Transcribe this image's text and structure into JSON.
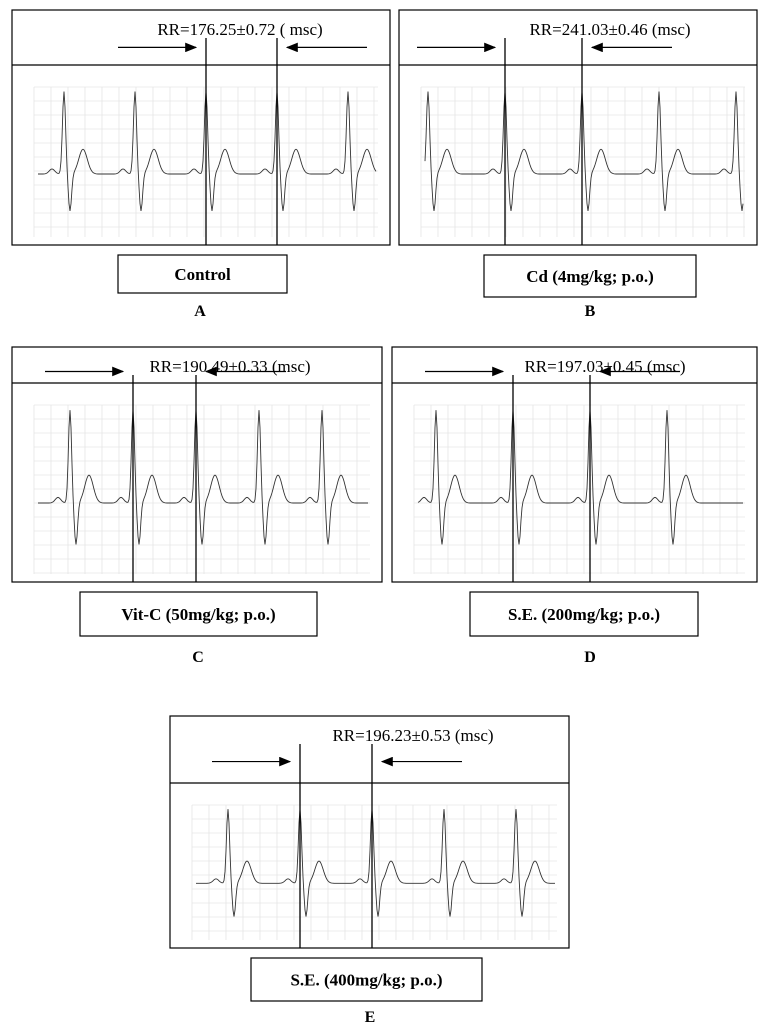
{
  "panels": [
    {
      "rr_label": "RR=176.25±0.72 ( msc)",
      "caption": "Control",
      "letter": "A"
    },
    {
      "rr_label": "RR=241.03±0.46 (msc)",
      "caption": "Cd (4mg/kg; p.o.)",
      "letter": "B"
    },
    {
      "rr_label": "RR=190.49±0.33 (msc)",
      "caption": "Vit-C (50mg/kg; p.o.)",
      "letter": "C"
    },
    {
      "rr_label": "RR=197.03±0.45 (msc)",
      "caption": "S.E. (200mg/kg; p.o.)",
      "letter": "D"
    },
    {
      "rr_label": "RR=196.23±0.53 (msc)",
      "caption": "S.E. (400mg/kg; p.o.)",
      "letter": "E"
    }
  ]
}
